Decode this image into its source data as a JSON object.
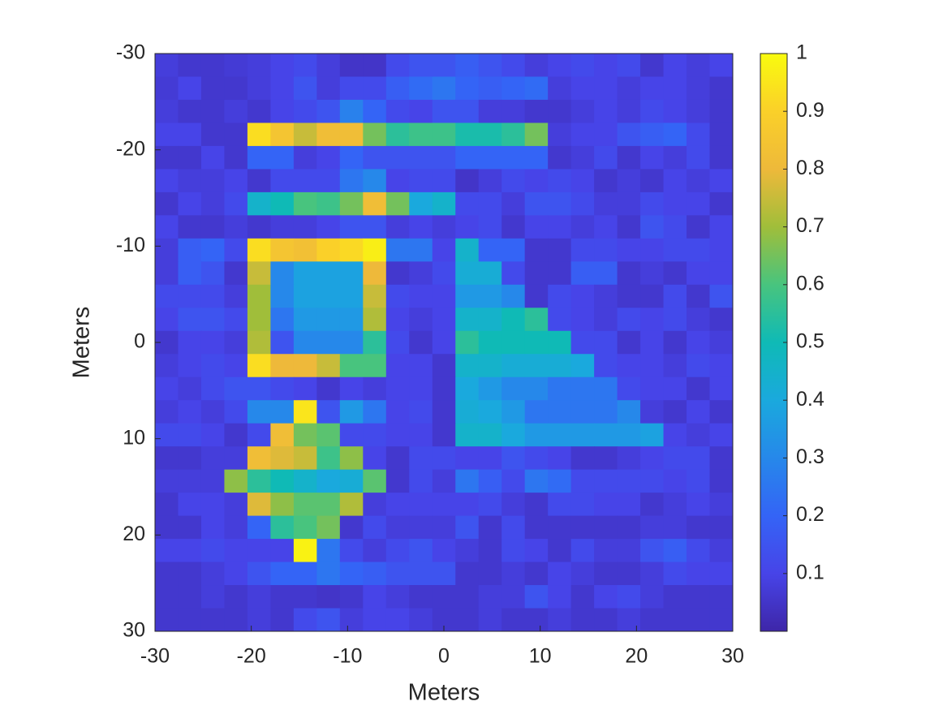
{
  "chart_data": {
    "type": "heatmap",
    "colormap": "parula",
    "x_label": "Meters",
    "y_label": "Meters",
    "xlim": [
      -30,
      30
    ],
    "ylim": [
      -30,
      30
    ],
    "y_direction": "reverse",
    "xticks": [
      -30,
      -20,
      -10,
      0,
      10,
      20,
      30
    ],
    "yticks": [
      -30,
      -20,
      -10,
      0,
      10,
      20,
      30
    ],
    "clim": [
      0,
      1
    ],
    "cticks": [
      0.1,
      0.2,
      0.3,
      0.4,
      0.5,
      0.6,
      0.7,
      0.8,
      0.9,
      1
    ],
    "z": [
      [
        0.08,
        0.06,
        0.06,
        0.07,
        0.08,
        0.1,
        0.12,
        0.08,
        0.05,
        0.05,
        0.12,
        0.15,
        0.15,
        0.18,
        0.15,
        0.12,
        0.08,
        0.1,
        0.12,
        0.1,
        0.12,
        0.06,
        0.1,
        0.08,
        0.1
      ],
      [
        0.07,
        0.1,
        0.06,
        0.06,
        0.08,
        0.1,
        0.15,
        0.08,
        0.12,
        0.12,
        0.18,
        0.22,
        0.25,
        0.2,
        0.18,
        0.2,
        0.22,
        0.08,
        0.1,
        0.1,
        0.08,
        0.1,
        0.1,
        0.08,
        0.06
      ],
      [
        0.08,
        0.06,
        0.06,
        0.08,
        0.06,
        0.1,
        0.12,
        0.15,
        0.28,
        0.2,
        0.12,
        0.1,
        0.15,
        0.15,
        0.08,
        0.08,
        0.06,
        0.06,
        0.08,
        0.1,
        0.08,
        0.12,
        0.1,
        0.08,
        0.06
      ],
      [
        0.1,
        0.1,
        0.06,
        0.06,
        0.93,
        0.85,
        0.75,
        0.82,
        0.82,
        0.65,
        0.55,
        0.58,
        0.58,
        0.52,
        0.52,
        0.55,
        0.65,
        0.08,
        0.1,
        0.1,
        0.15,
        0.18,
        0.2,
        0.12,
        0.06
      ],
      [
        0.06,
        0.06,
        0.1,
        0.06,
        0.2,
        0.2,
        0.08,
        0.1,
        0.2,
        0.15,
        0.15,
        0.15,
        0.15,
        0.2,
        0.2,
        0.2,
        0.2,
        0.06,
        0.08,
        0.12,
        0.06,
        0.1,
        0.08,
        0.12,
        0.06
      ],
      [
        0.1,
        0.08,
        0.08,
        0.1,
        0.06,
        0.12,
        0.12,
        0.12,
        0.25,
        0.3,
        0.1,
        0.12,
        0.12,
        0.05,
        0.08,
        0.12,
        0.1,
        0.12,
        0.1,
        0.06,
        0.08,
        0.06,
        0.1,
        0.08,
        0.1
      ],
      [
        0.06,
        0.1,
        0.08,
        0.12,
        0.45,
        0.5,
        0.6,
        0.58,
        0.65,
        0.82,
        0.65,
        0.4,
        0.45,
        0.12,
        0.12,
        0.08,
        0.15,
        0.15,
        0.12,
        0.08,
        0.08,
        0.12,
        0.1,
        0.1,
        0.06
      ],
      [
        0.1,
        0.06,
        0.06,
        0.08,
        0.06,
        0.08,
        0.08,
        0.1,
        0.15,
        0.15,
        0.08,
        0.1,
        0.08,
        0.1,
        0.12,
        0.06,
        0.1,
        0.1,
        0.08,
        0.1,
        0.06,
        0.15,
        0.12,
        0.06,
        0.1
      ],
      [
        0.08,
        0.18,
        0.2,
        0.12,
        0.93,
        0.85,
        0.83,
        0.9,
        0.92,
        0.97,
        0.25,
        0.25,
        0.1,
        0.45,
        0.2,
        0.2,
        0.06,
        0.06,
        0.12,
        0.12,
        0.1,
        0.1,
        0.12,
        0.12,
        0.1
      ],
      [
        0.08,
        0.18,
        0.15,
        0.06,
        0.75,
        0.3,
        0.38,
        0.38,
        0.38,
        0.8,
        0.06,
        0.08,
        0.12,
        0.42,
        0.42,
        0.12,
        0.06,
        0.06,
        0.18,
        0.18,
        0.06,
        0.08,
        0.06,
        0.1,
        0.1
      ],
      [
        0.12,
        0.12,
        0.12,
        0.08,
        0.7,
        0.3,
        0.38,
        0.38,
        0.38,
        0.75,
        0.12,
        0.1,
        0.1,
        0.35,
        0.35,
        0.3,
        0.06,
        0.12,
        0.1,
        0.08,
        0.06,
        0.06,
        0.12,
        0.06,
        0.15
      ],
      [
        0.1,
        0.15,
        0.15,
        0.12,
        0.7,
        0.25,
        0.35,
        0.35,
        0.35,
        0.72,
        0.1,
        0.08,
        0.1,
        0.45,
        0.45,
        0.5,
        0.55,
        0.12,
        0.1,
        0.08,
        0.12,
        0.1,
        0.12,
        0.08,
        0.06
      ],
      [
        0.06,
        0.1,
        0.1,
        0.08,
        0.72,
        0.15,
        0.3,
        0.3,
        0.3,
        0.55,
        0.12,
        0.06,
        0.1,
        0.55,
        0.5,
        0.5,
        0.5,
        0.5,
        0.12,
        0.12,
        0.06,
        0.1,
        0.06,
        0.1,
        0.08
      ],
      [
        0.08,
        0.1,
        0.12,
        0.1,
        0.93,
        0.8,
        0.8,
        0.75,
        0.6,
        0.6,
        0.1,
        0.1,
        0.06,
        0.45,
        0.45,
        0.42,
        0.42,
        0.42,
        0.4,
        0.12,
        0.1,
        0.1,
        0.08,
        0.12,
        0.1
      ],
      [
        0.1,
        0.08,
        0.12,
        0.15,
        0.15,
        0.12,
        0.1,
        0.06,
        0.1,
        0.08,
        0.1,
        0.1,
        0.06,
        0.4,
        0.35,
        0.3,
        0.3,
        0.25,
        0.25,
        0.25,
        0.12,
        0.1,
        0.1,
        0.06,
        0.1
      ],
      [
        0.08,
        0.1,
        0.08,
        0.12,
        0.3,
        0.3,
        0.95,
        0.15,
        0.35,
        0.25,
        0.1,
        0.12,
        0.06,
        0.42,
        0.4,
        0.35,
        0.25,
        0.25,
        0.25,
        0.25,
        0.3,
        0.08,
        0.06,
        0.1,
        0.06
      ],
      [
        0.12,
        0.12,
        0.1,
        0.06,
        0.12,
        0.82,
        0.65,
        0.62,
        0.12,
        0.12,
        0.1,
        0.1,
        0.06,
        0.45,
        0.45,
        0.4,
        0.35,
        0.35,
        0.35,
        0.35,
        0.35,
        0.38,
        0.1,
        0.08,
        0.1
      ],
      [
        0.06,
        0.06,
        0.08,
        0.08,
        0.82,
        0.78,
        0.75,
        0.58,
        0.68,
        0.1,
        0.06,
        0.12,
        0.12,
        0.1,
        0.1,
        0.15,
        0.12,
        0.1,
        0.06,
        0.06,
        0.08,
        0.1,
        0.12,
        0.12,
        0.06
      ],
      [
        0.08,
        0.08,
        0.08,
        0.68,
        0.55,
        0.5,
        0.45,
        0.4,
        0.42,
        0.62,
        0.06,
        0.12,
        0.08,
        0.25,
        0.18,
        0.12,
        0.25,
        0.22,
        0.12,
        0.12,
        0.12,
        0.12,
        0.1,
        0.12,
        0.06
      ],
      [
        0.06,
        0.1,
        0.1,
        0.08,
        0.78,
        0.68,
        0.62,
        0.62,
        0.72,
        0.08,
        0.1,
        0.1,
        0.1,
        0.1,
        0.12,
        0.08,
        0.06,
        0.12,
        0.12,
        0.1,
        0.1,
        0.06,
        0.08,
        0.1,
        0.08
      ],
      [
        0.06,
        0.06,
        0.1,
        0.08,
        0.2,
        0.55,
        0.6,
        0.65,
        0.06,
        0.12,
        0.08,
        0.08,
        0.08,
        0.15,
        0.06,
        0.12,
        0.06,
        0.06,
        0.06,
        0.06,
        0.06,
        0.08,
        0.08,
        0.06,
        0.06
      ],
      [
        0.1,
        0.1,
        0.12,
        0.1,
        0.1,
        0.1,
        0.98,
        0.25,
        0.12,
        0.08,
        0.12,
        0.15,
        0.1,
        0.08,
        0.06,
        0.12,
        0.1,
        0.06,
        0.12,
        0.08,
        0.08,
        0.15,
        0.18,
        0.12,
        0.08
      ],
      [
        0.06,
        0.06,
        0.08,
        0.1,
        0.15,
        0.2,
        0.2,
        0.25,
        0.2,
        0.18,
        0.15,
        0.15,
        0.15,
        0.06,
        0.06,
        0.08,
        0.06,
        0.1,
        0.08,
        0.06,
        0.06,
        0.08,
        0.12,
        0.1,
        0.1
      ],
      [
        0.06,
        0.06,
        0.08,
        0.06,
        0.08,
        0.06,
        0.06,
        0.05,
        0.06,
        0.1,
        0.08,
        0.06,
        0.06,
        0.06,
        0.08,
        0.08,
        0.15,
        0.1,
        0.06,
        0.1,
        0.12,
        0.08,
        0.06,
        0.06,
        0.06
      ],
      [
        0.06,
        0.06,
        0.06,
        0.06,
        0.08,
        0.06,
        0.12,
        0.15,
        0.08,
        0.1,
        0.1,
        0.08,
        0.06,
        0.06,
        0.08,
        0.06,
        0.06,
        0.08,
        0.06,
        0.06,
        0.08,
        0.06,
        0.06,
        0.06,
        0.06
      ]
    ]
  }
}
